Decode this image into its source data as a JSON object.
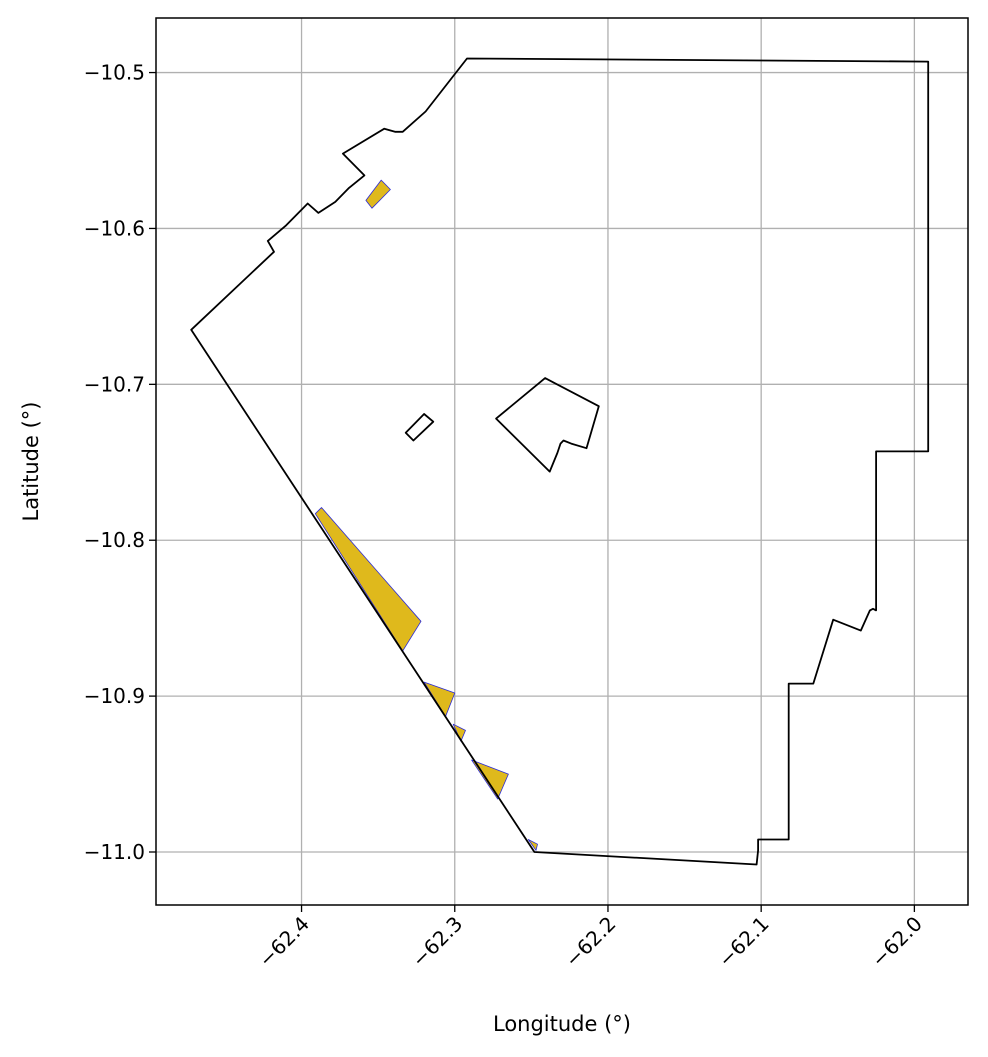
{
  "chart_data": {
    "type": "map",
    "xlabel": "Longitude (°)",
    "ylabel": "Latitude (°)",
    "xlim": [
      -62.495,
      -61.965
    ],
    "ylim": [
      -11.034,
      -10.465
    ],
    "grid": true,
    "colors": {
      "boundary": "#000000",
      "fill": "#dfb91c",
      "fill_edge": "#2b2bd8",
      "grid": "#b0b0b0"
    },
    "x_ticks": [
      {
        "value": -62.4,
        "label": "−62.4"
      },
      {
        "value": -62.3,
        "label": "−62.3"
      },
      {
        "value": -62.2,
        "label": "−62.2"
      },
      {
        "value": -62.1,
        "label": "−62.1"
      },
      {
        "value": -62.0,
        "label": "−62.0"
      }
    ],
    "y_ticks": [
      {
        "value": -10.5,
        "label": "−10.5"
      },
      {
        "value": -10.6,
        "label": "−10.6"
      },
      {
        "value": -10.7,
        "label": "−10.7"
      },
      {
        "value": -10.8,
        "label": "−10.8"
      },
      {
        "value": -10.9,
        "label": "−10.9"
      },
      {
        "value": -11.0,
        "label": "−11.0"
      }
    ],
    "boundaries": [
      [
        [
          -62.292,
          -10.491
        ],
        [
          -61.991,
          -10.493
        ],
        [
          -61.991,
          -10.743
        ],
        [
          -62.025,
          -10.743
        ],
        [
          -62.025,
          -10.845
        ],
        [
          -62.027,
          -10.844
        ],
        [
          -62.029,
          -10.845
        ],
        [
          -62.035,
          -10.858
        ],
        [
          -62.053,
          -10.851
        ],
        [
          -62.066,
          -10.892
        ],
        [
          -62.082,
          -10.892
        ],
        [
          -62.082,
          -10.992
        ],
        [
          -62.102,
          -10.992
        ],
        [
          -62.102,
          -10.999
        ],
        [
          -62.103,
          -11.008
        ],
        [
          -62.248,
          -11.0
        ],
        [
          -62.472,
          -10.665
        ],
        [
          -62.418,
          -10.615
        ],
        [
          -62.422,
          -10.608
        ],
        [
          -62.41,
          -10.598
        ],
        [
          -62.396,
          -10.584
        ],
        [
          -62.389,
          -10.59
        ],
        [
          -62.378,
          -10.583
        ],
        [
          -62.369,
          -10.574
        ],
        [
          -62.359,
          -10.566
        ],
        [
          -62.373,
          -10.552
        ],
        [
          -62.346,
          -10.536
        ],
        [
          -62.339,
          -10.538
        ],
        [
          -62.334,
          -10.538
        ],
        [
          -62.319,
          -10.525
        ],
        [
          -62.292,
          -10.491
        ]
      ],
      [
        [
          -62.241,
          -10.696
        ],
        [
          -62.206,
          -10.714
        ],
        [
          -62.214,
          -10.741
        ],
        [
          -62.224,
          -10.738
        ],
        [
          -62.229,
          -10.736
        ],
        [
          -62.231,
          -10.738
        ],
        [
          -62.233,
          -10.744
        ],
        [
          -62.238,
          -10.756
        ],
        [
          -62.273,
          -10.722
        ],
        [
          -62.241,
          -10.696
        ]
      ],
      [
        [
          -62.327,
          -10.736
        ],
        [
          -62.332,
          -10.731
        ],
        [
          -62.32,
          -10.719
        ],
        [
          -62.314,
          -10.724
        ],
        [
          -62.327,
          -10.736
        ]
      ]
    ],
    "filled_areas": [
      [
        [
          -62.358,
          -10.582
        ],
        [
          -62.354,
          -10.587
        ],
        [
          -62.342,
          -10.575
        ],
        [
          -62.348,
          -10.569
        ],
        [
          -62.358,
          -10.582
        ]
      ],
      [
        [
          -62.391,
          -10.783
        ],
        [
          -62.387,
          -10.779
        ],
        [
          -62.322,
          -10.852
        ],
        [
          -62.334,
          -10.871
        ],
        [
          -62.391,
          -10.783
        ]
      ],
      [
        [
          -62.32,
          -10.891
        ],
        [
          -62.3,
          -10.898
        ],
        [
          -62.306,
          -10.913
        ],
        [
          -62.32,
          -10.891
        ]
      ],
      [
        [
          -62.301,
          -10.918
        ],
        [
          -62.293,
          -10.922
        ],
        [
          -62.296,
          -10.929
        ],
        [
          -62.301,
          -10.918
        ]
      ],
      [
        [
          -62.289,
          -10.941
        ],
        [
          -62.265,
          -10.95
        ],
        [
          -62.272,
          -10.966
        ],
        [
          -62.289,
          -10.941
        ]
      ],
      [
        [
          -62.252,
          -10.992
        ],
        [
          -62.246,
          -10.995
        ],
        [
          -62.247,
          -10.999
        ],
        [
          -62.252,
          -10.992
        ]
      ]
    ]
  }
}
